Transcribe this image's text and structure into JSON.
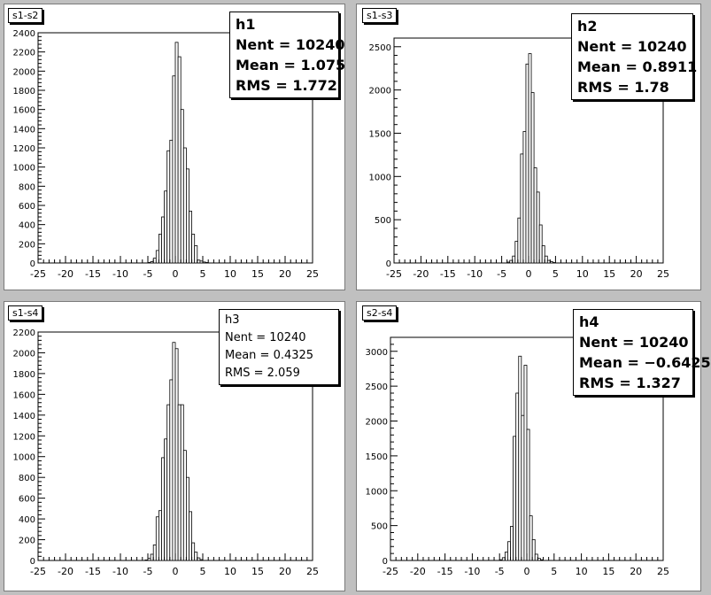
{
  "panels": [
    {
      "id": "pad1",
      "title": "s1-s2",
      "stat_name": "h1",
      "nent": "Nent = 10240",
      "mean": "Mean  =  1.075",
      "rms": "RMS   =  1.772"
    },
    {
      "id": "pad2",
      "title": "s1-s3",
      "stat_name": "h2",
      "nent": "Nent = 10240",
      "mean": "Mean  = 0.8911",
      "rms": "RMS   =   1.78"
    },
    {
      "id": "pad3",
      "title": "s1-s4",
      "stat_name": "h3",
      "nent": "Nent = 10240",
      "mean": "Mean  = 0.4325",
      "rms": "RMS   =  2.059"
    },
    {
      "id": "pad4",
      "title": "s2-s4",
      "stat_name": "h4",
      "nent": "Nent = 10240",
      "mean": "Mean  = −0.6425",
      "rms": "RMS   =  1.327"
    }
  ],
  "chart_data": [
    {
      "type": "bar",
      "name": "h1",
      "title": "s1-s2",
      "xlim": [
        -25,
        25
      ],
      "ylim": [
        0,
        2400
      ],
      "xticks": [
        -25,
        -20,
        -15,
        -10,
        -5,
        0,
        5,
        10,
        15,
        20,
        25
      ],
      "yticks": [
        0,
        200,
        400,
        600,
        800,
        1000,
        1200,
        1400,
        1600,
        1800,
        2000,
        2200,
        2400
      ],
      "bin_width": 0.5,
      "bins": [
        [
          -5,
          5
        ],
        [
          -4.5,
          15
        ],
        [
          -4,
          50
        ],
        [
          -3.5,
          130
        ],
        [
          -3,
          300
        ],
        [
          -2.5,
          480
        ],
        [
          -2,
          750
        ],
        [
          -1.5,
          1170
        ],
        [
          -1,
          1280
        ],
        [
          -0.5,
          1950
        ],
        [
          0,
          2300
        ],
        [
          0.5,
          2150
        ],
        [
          1,
          1600
        ],
        [
          1.5,
          1200
        ],
        [
          2,
          980
        ],
        [
          2.5,
          540
        ],
        [
          3,
          300
        ],
        [
          3.5,
          180
        ],
        [
          4,
          30
        ],
        [
          4.5,
          20
        ],
        [
          5,
          10
        ],
        [
          5.5,
          5
        ]
      ]
    },
    {
      "type": "bar",
      "name": "h2",
      "title": "s1-s3",
      "xlim": [
        -25,
        25
      ],
      "ylim": [
        0,
        2600
      ],
      "xticks": [
        -25,
        -20,
        -15,
        -10,
        -5,
        0,
        5,
        10,
        15,
        20,
        25
      ],
      "yticks": [
        0,
        500,
        1000,
        1500,
        2000,
        2500
      ],
      "bin_width": 0.5,
      "bins": [
        [
          -4,
          10
        ],
        [
          -3.5,
          30
        ],
        [
          -3,
          80
        ],
        [
          -2.5,
          250
        ],
        [
          -2,
          520
        ],
        [
          -1.5,
          1260
        ],
        [
          -1,
          1520
        ],
        [
          -0.5,
          2300
        ],
        [
          0,
          2420
        ],
        [
          0.5,
          1970
        ],
        [
          1,
          1100
        ],
        [
          1.5,
          820
        ],
        [
          2,
          440
        ],
        [
          2.5,
          200
        ],
        [
          3,
          80
        ],
        [
          3.5,
          30
        ],
        [
          4,
          15
        ],
        [
          4.5,
          5
        ]
      ]
    },
    {
      "type": "bar",
      "name": "h3",
      "title": "s1-s4",
      "xlim": [
        -25,
        25
      ],
      "ylim": [
        0,
        2200
      ],
      "xticks": [
        -25,
        -20,
        -15,
        -10,
        -5,
        0,
        5,
        10,
        15,
        20,
        25
      ],
      "yticks": [
        0,
        200,
        400,
        600,
        800,
        1000,
        1200,
        1400,
        1600,
        1800,
        2000,
        2200
      ],
      "bin_width": 0.5,
      "bins": [
        [
          -5.5,
          5
        ],
        [
          -5,
          20
        ],
        [
          -4.5,
          60
        ],
        [
          -4,
          150
        ],
        [
          -3.5,
          420
        ],
        [
          -3,
          480
        ],
        [
          -2.5,
          990
        ],
        [
          -2,
          1170
        ],
        [
          -1.5,
          1500
        ],
        [
          -1,
          1740
        ],
        [
          -0.5,
          2100
        ],
        [
          0,
          2040
        ],
        [
          0.5,
          1500
        ],
        [
          1,
          1500
        ],
        [
          1.5,
          1060
        ],
        [
          2,
          800
        ],
        [
          2.5,
          470
        ],
        [
          3,
          170
        ],
        [
          3.5,
          80
        ],
        [
          4,
          25
        ],
        [
          4.5,
          8
        ]
      ]
    },
    {
      "type": "bar",
      "name": "h4",
      "title": "s2-s4",
      "xlim": [
        -25,
        25
      ],
      "ylim": [
        0,
        3200
      ],
      "xticks": [
        -25,
        -20,
        -15,
        -10,
        -5,
        0,
        5,
        10,
        15,
        20,
        25
      ],
      "yticks": [
        0,
        500,
        1000,
        1500,
        2000,
        2500,
        3000
      ],
      "bin_width": 0.5,
      "bins": [
        [
          -5,
          10
        ],
        [
          -4.5,
          40
        ],
        [
          -4,
          120
        ],
        [
          -3.5,
          270
        ],
        [
          -3,
          490
        ],
        [
          -2.5,
          1780
        ],
        [
          -2,
          2400
        ],
        [
          -1.5,
          2930
        ],
        [
          -1,
          2080
        ],
        [
          -0.5,
          2800
        ],
        [
          0,
          1880
        ],
        [
          0.5,
          640
        ],
        [
          1,
          300
        ],
        [
          1.5,
          90
        ],
        [
          2,
          30
        ],
        [
          2.5,
          10
        ]
      ]
    }
  ]
}
